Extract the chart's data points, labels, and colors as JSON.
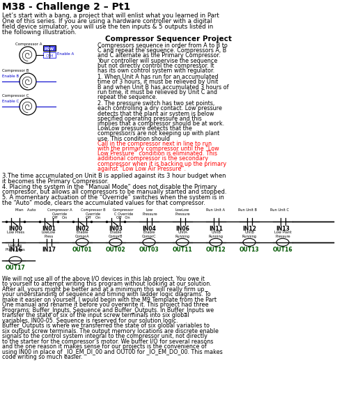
{
  "title": "M38 - Challenge 2 – Pt1",
  "intro": "Let’s start with a bang, a project that will enlist what you learned in Part One of this series. If you are using a hardware controller with a digital field device simulator, you will use the ten inputs & 5 outputs listed in the following illustration.",
  "project_title": "Compressor Sequencer Project",
  "project_desc": "Compressors sequence in order from A to B to C and repeat the sequence. Compressors A, B and C alternate as the Primary Compressor. Your controller will supervise the sequence but not directly control the compressor. It has its own control system with regulator.",
  "point1": "1. When Unit A has run for an accumulated time of 3 hours, it must be relieved by Unit B and when Unit B has accumulated 3 hours of run time, it must be relieved by Unit C and repeat the sequence.",
  "point2a": "2. The pressure switch has two set points, each controlling a dry contact. Low pressure detects that the plant air system is below specified operating pressure and this implies that a compressor should be at work. LowLow pressure detects that the compressor/s are not keeping up with plant use. This condition should ",
  "point2_red": "Call in the compressor next in line to run with the primary compressor until the “Low Low Pressure” condition is eliminated. This additional compressor is the secondary compressor when it is backing up the primary against “Low Low Air Pressure”.",
  "point3": "3.The time accumulated on Unit B is applied against its 3 hour budget when it becomes the Primary Compressor.",
  "point4": "4. Placing the system in the “Manual Mode” does not disable the Primary compressor, but allows all compressors to be manually started and stopped.",
  "point5": "5. A momentary actuation of the “Override” switches when the system is in the “Auto” mode, clears the accumulated values for that compressor.",
  "bottom_text1": "We will not use all of the above I/O devices in this lab project. You owe it to yourself to attempt writing this program without looking at our solution. After all, yours might be better and at a minimum this will really firm up your understanding of sequence and timing with ladder logic diagrams. To make it easier on yourself, I would begin with the M9 Template from the Part One manual and rename it before you overwrite it. This project had three Programs: Buffer_Inputs, Sequence and Buffer_Outputs. In Buffer_Inputs we transfer the state of six of the input screw terminals into six global variables, IN00-05. Sequence is reserved for our solution logic. Buffer_Outputs is where we transferred the state of six global variables to six output screw terminals. The output memory locations are discrete enable signals to the control system ",
  "bottom_text_ul": "integral to the compressor unit",
  "bottom_text2": ", not directly to the starter for the compressor’s motor. We buffer I/O for several reasons and the one reason it makes sense for our projects is the convenience of using IN00 in place of _IO_EM_DI_00 and OUT00 for _IO_EM_DO_00. This makes code writing so much easier.",
  "bg_color": "#ffffff"
}
